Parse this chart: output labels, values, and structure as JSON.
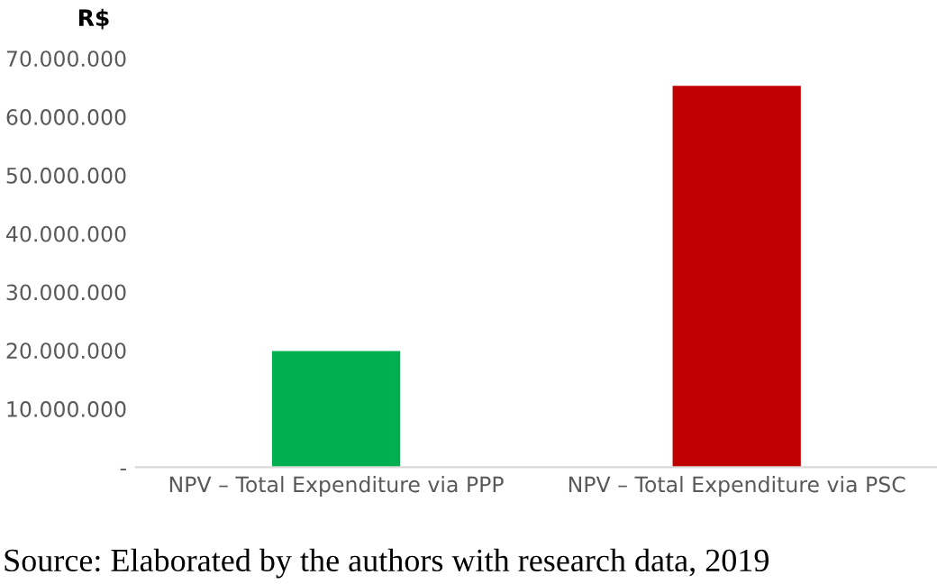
{
  "chart_data": {
    "type": "bar",
    "ylabel": "R$",
    "categories": [
      "NPV – Total Expenditure via PPP",
      "NPV – Total Expenditure via PSC"
    ],
    "values": [
      19900000,
      65300000
    ],
    "colors": [
      "#00b050",
      "#c00000"
    ],
    "ylim": [
      0,
      70000000
    ],
    "yticks": [
      {
        "value": 0,
        "label": "-"
      },
      {
        "value": 10000000,
        "label": "10.000.000"
      },
      {
        "value": 20000000,
        "label": "20.000.000"
      },
      {
        "value": 30000000,
        "label": "30.000.000"
      },
      {
        "value": 40000000,
        "label": "40.000.000"
      },
      {
        "value": 50000000,
        "label": "50.000.000"
      },
      {
        "value": 60000000,
        "label": "60.000.000"
      },
      {
        "value": 70000000,
        "label": "70.000.000"
      }
    ],
    "grid": false,
    "annotations": [
      "Source: Elaborated by the authors with research data, 2019"
    ]
  }
}
